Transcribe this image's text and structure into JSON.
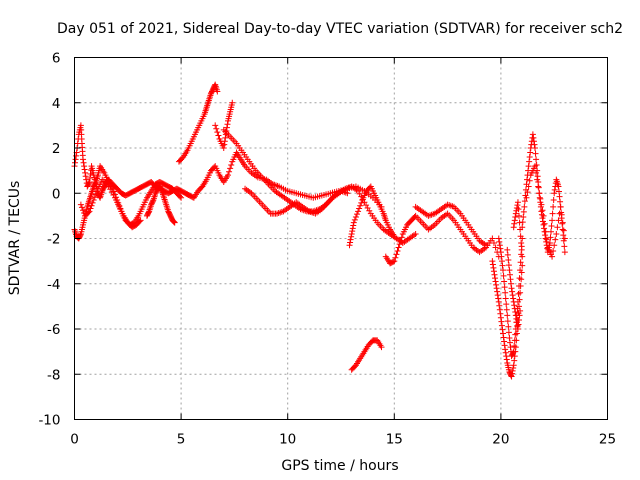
{
  "chart_data": {
    "type": "scatter",
    "title": "Day 051 of 2021, Sidereal Day-to-day VTEC variation (SDTVAR) for receiver sch2",
    "xlabel": "GPS time / hours",
    "ylabel": "SDTVAR / TECUs",
    "xlim": [
      0,
      25
    ],
    "ylim": [
      -10,
      6
    ],
    "xticks": [
      0,
      5,
      10,
      15,
      20,
      25
    ],
    "yticks": [
      -10,
      -8,
      -6,
      -4,
      -2,
      0,
      2,
      4,
      6
    ],
    "xtick_labels": [
      "0",
      "5",
      "10",
      "15",
      "20",
      "25"
    ],
    "ytick_labels": [
      "-10",
      "-8",
      "-6",
      "-4",
      "-2",
      "0",
      "2",
      "4",
      "6"
    ],
    "grid": true,
    "marker": "+",
    "series_color": "#ff0000",
    "series": [
      {
        "name": "sch2",
        "segments": [
          {
            "x": [
              0.0,
              0.1,
              0.2,
              0.3,
              0.35,
              0.4,
              0.5,
              0.6,
              0.7,
              0.8,
              0.9,
              1.0,
              1.1,
              1.2,
              1.3,
              1.4,
              1.5,
              1.6,
              1.8,
              2.0,
              2.2,
              2.4,
              2.6,
              2.8,
              3.0,
              3.2,
              3.4,
              3.6,
              3.8,
              4.0,
              4.2,
              4.4,
              4.6,
              4.8,
              5.0,
              5.2,
              5.4,
              5.6,
              5.8,
              6.0,
              6.2,
              6.4,
              6.6,
              6.8,
              7.0,
              7.2,
              7.4,
              7.6,
              7.8,
              8.0,
              8.3,
              8.6,
              9.0,
              9.3,
              9.6,
              10.0,
              10.4,
              10.8,
              11.2,
              11.6,
              12.0,
              12.4,
              12.8,
              13.2,
              13.6,
              14.0,
              14.4
            ],
            "y": [
              1.2,
              1.8,
              2.6,
              3.0,
              2.2,
              1.5,
              0.9,
              0.3,
              0.5,
              1.2,
              0.8,
              0.4,
              0.0,
              -0.2,
              0.1,
              0.3,
              0.5,
              0.6,
              0.4,
              0.2,
              0.0,
              -0.1,
              0.0,
              0.1,
              0.2,
              0.3,
              0.4,
              0.5,
              0.3,
              0.2,
              0.1,
              0.0,
              0.1,
              0.2,
              0.1,
              0.0,
              -0.1,
              -0.2,
              0.1,
              0.3,
              0.6,
              1.0,
              1.2,
              0.8,
              0.5,
              0.8,
              1.4,
              1.8,
              1.5,
              1.2,
              0.9,
              0.7,
              0.6,
              0.4,
              0.3,
              0.1,
              0.0,
              -0.1,
              -0.2,
              -0.1,
              0.0,
              0.1,
              0.2,
              0.3,
              0.1,
              -0.2,
              -0.6
            ]
          },
          {
            "x": [
              0.0,
              0.1,
              0.2,
              0.3,
              0.4,
              0.5,
              0.6,
              0.7,
              0.8,
              0.9,
              1.0,
              1.1,
              1.2,
              1.4,
              1.6,
              1.8,
              2.0,
              2.2,
              2.4,
              2.6,
              2.8,
              3.0,
              3.2,
              3.4,
              3.6,
              3.8,
              4.0,
              4.2,
              4.4,
              4.6,
              4.8,
              5.0
            ],
            "y": [
              -1.6,
              -1.9,
              -2.0,
              -1.8,
              -1.4,
              -1.0,
              -0.6,
              -0.3,
              0.0,
              0.3,
              0.5,
              0.8,
              1.2,
              0.9,
              0.5,
              0.2,
              -0.3,
              -0.8,
              -1.2,
              -1.4,
              -1.3,
              -1.0,
              -0.6,
              -0.2,
              0.1,
              0.4,
              0.5,
              0.4,
              0.3,
              0.2,
              0.0,
              -0.2
            ]
          },
          {
            "x": [
              0.3,
              0.5,
              0.7,
              0.9,
              1.1,
              1.3,
              1.6,
              1.9,
              2.1,
              2.3,
              2.5,
              2.7,
              2.9,
              3.1
            ],
            "y": [
              -0.5,
              -1.0,
              -0.8,
              -0.3,
              0.2,
              0.6,
              0.3,
              -0.2,
              -0.6,
              -1.0,
              -1.3,
              -1.5,
              -1.4,
              -1.2
            ]
          },
          {
            "x": [
              3.4,
              3.5,
              3.6,
              3.7,
              3.8,
              3.9,
              4.0,
              4.1,
              4.2,
              4.3,
              4.4,
              4.5,
              4.6,
              4.7
            ],
            "y": [
              -1.0,
              -0.8,
              -0.5,
              -0.3,
              0.0,
              0.2,
              0.3,
              0.1,
              -0.2,
              -0.5,
              -0.8,
              -1.0,
              -1.2,
              -1.3
            ]
          },
          {
            "x": [
              4.9,
              5.1,
              5.3,
              5.5,
              5.7,
              5.9,
              6.1,
              6.2,
              6.3,
              6.4,
              6.5,
              6.6,
              6.7
            ],
            "y": [
              1.4,
              1.6,
              1.9,
              2.3,
              2.7,
              3.1,
              3.5,
              3.8,
              4.1,
              4.4,
              4.6,
              4.8,
              4.5
            ]
          },
          {
            "x": [
              6.6,
              6.8,
              7.0,
              7.1,
              7.2,
              7.3,
              7.4
            ],
            "y": [
              3.0,
              2.4,
              2.0,
              2.6,
              3.2,
              3.6,
              4.0
            ]
          },
          {
            "x": [
              7.0,
              7.3,
              7.6,
              7.9,
              8.2,
              8.5,
              8.8,
              9.1,
              9.4,
              9.7,
              10.0,
              10.3,
              10.6,
              10.9,
              11.2,
              11.5,
              11.8,
              12.1,
              12.4,
              12.7,
              13.0,
              13.3,
              13.6,
              13.9,
              14.2,
              14.5,
              14.8,
              15.1,
              15.4,
              15.7,
              16.0
            ],
            "y": [
              2.8,
              2.5,
              2.2,
              1.8,
              1.4,
              1.0,
              0.7,
              0.4,
              0.1,
              -0.1,
              -0.3,
              -0.5,
              -0.7,
              -0.8,
              -0.8,
              -0.7,
              -0.5,
              -0.2,
              0.0,
              0.2,
              0.3,
              0.1,
              -0.4,
              -0.9,
              -1.3,
              -1.6,
              -1.8,
              -2.0,
              -2.2,
              -2.0,
              -1.8
            ]
          },
          {
            "x": [
              8.0,
              8.3,
              8.6,
              8.9,
              9.2,
              9.5,
              9.8,
              10.1,
              10.4,
              10.7,
              11.0,
              11.3,
              11.6,
              11.9,
              12.2,
              12.5,
              12.8
            ],
            "y": [
              0.2,
              0.0,
              -0.3,
              -0.6,
              -0.9,
              -0.9,
              -0.8,
              -0.6,
              -0.4,
              -0.6,
              -0.8,
              -0.9,
              -0.7,
              -0.4,
              -0.1,
              0.1,
              0.0
            ]
          },
          {
            "x": [
              12.9,
              13.0,
              13.1,
              13.3,
              13.5,
              13.7,
              13.9,
              14.1,
              14.3,
              14.5,
              14.6,
              14.8,
              15.0
            ],
            "y": [
              -2.3,
              -1.8,
              -1.3,
              -0.8,
              -0.3,
              0.1,
              0.3,
              -0.1,
              -0.5,
              -0.9,
              -1.2,
              -1.6,
              -1.9
            ]
          },
          {
            "x": [
              13.0,
              13.2,
              13.4,
              13.6,
              13.8,
              14.0,
              14.2,
              14.4
            ],
            "y": [
              -7.8,
              -7.6,
              -7.3,
              -7.0,
              -6.7,
              -6.5,
              -6.5,
              -6.8
            ]
          },
          {
            "x": [
              14.6,
              14.8,
              15.0,
              15.2,
              15.4,
              15.6,
              15.8,
              16.0,
              16.3,
              16.6,
              16.9,
              17.2,
              17.5,
              17.8,
              18.1,
              18.4,
              18.7,
              19.0,
              19.3,
              19.6,
              19.9
            ],
            "y": [
              -2.8,
              -3.1,
              -3.0,
              -2.4,
              -1.8,
              -1.4,
              -1.2,
              -1.0,
              -1.3,
              -1.6,
              -1.4,
              -1.1,
              -0.9,
              -1.2,
              -1.6,
              -2.0,
              -2.4,
              -2.6,
              -2.4,
              -2.0,
              -2.8
            ]
          },
          {
            "x": [
              16.0,
              16.3,
              16.6,
              16.9,
              17.2,
              17.5,
              17.8,
              18.1,
              18.4,
              18.7,
              19.0,
              19.3
            ],
            "y": [
              -0.6,
              -0.8,
              -1.0,
              -0.9,
              -0.7,
              -0.5,
              -0.6,
              -0.9,
              -1.3,
              -1.7,
              -2.1,
              -2.3
            ]
          },
          {
            "x": [
              19.6,
              19.7,
              19.8,
              19.9,
              20.0,
              20.1,
              20.2,
              20.3,
              20.4,
              20.5,
              20.6,
              20.7,
              20.8,
              20.9,
              21.0
            ],
            "y": [
              -3.0,
              -3.6,
              -4.2,
              -4.8,
              -5.5,
              -6.2,
              -6.9,
              -7.5,
              -7.9,
              -8.1,
              -7.6,
              -6.8,
              -5.6,
              -4.4,
              -3.2
            ]
          },
          {
            "x": [
              19.9,
              20.0,
              20.1,
              20.2,
              20.3,
              20.4,
              20.5,
              20.6,
              20.7,
              20.8,
              20.9,
              21.0
            ],
            "y": [
              -2.0,
              -2.6,
              -3.4,
              -4.4,
              -5.4,
              -6.4,
              -7.2,
              -7.0,
              -6.0,
              -4.8,
              -3.4,
              -2.0
            ]
          },
          {
            "x": [
              20.3,
              20.4,
              20.5,
              20.6,
              20.7,
              20.8,
              20.9
            ],
            "y": [
              -2.5,
              -3.4,
              -4.2,
              -4.8,
              -5.4,
              -6.0,
              -5.2
            ]
          },
          {
            "x": [
              20.6,
              20.7,
              20.8,
              20.9,
              21.0
            ],
            "y": [
              -1.5,
              -0.9,
              -0.4,
              -1.6,
              -2.8
            ]
          },
          {
            "x": [
              21.0,
              21.1,
              21.2,
              21.3,
              21.4,
              21.5,
              21.6,
              21.7,
              21.8,
              21.9,
              22.0,
              22.1,
              22.2,
              22.3,
              22.4,
              22.5,
              22.6,
              22.7,
              22.8,
              22.9,
              23.0
            ],
            "y": [
              -1.5,
              -0.6,
              0.4,
              1.2,
              2.0,
              2.6,
              2.0,
              1.0,
              0.0,
              -0.8,
              -1.4,
              -2.0,
              -2.6,
              -2.2,
              -1.2,
              0.0,
              0.6,
              0.3,
              -0.6,
              -1.6,
              -2.6
            ]
          },
          {
            "x": [
              21.2,
              21.4,
              21.6,
              21.8,
              22.0,
              22.2,
              22.4,
              22.6,
              22.8,
              23.0
            ],
            "y": [
              -0.2,
              0.8,
              1.2,
              0.0,
              -1.0,
              -2.4,
              -2.8,
              -1.8,
              -0.6,
              -2.0
            ]
          }
        ]
      }
    ]
  }
}
